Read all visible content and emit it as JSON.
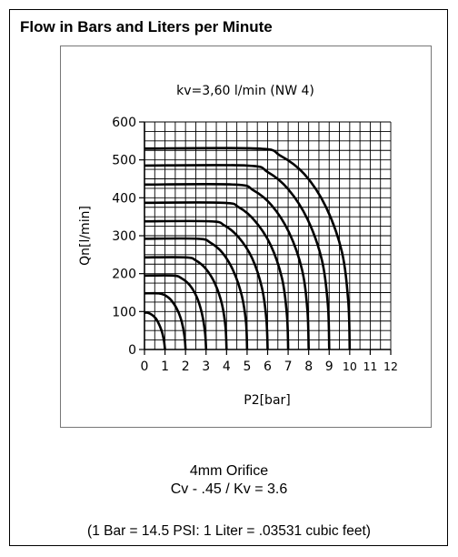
{
  "heading": "Flow in Bars and Liters per Minute",
  "caption": {
    "line1": "4mm Orifice",
    "line2": "Cv - .45 / Kv = 3.6",
    "note": "(1 Bar = 14.5 PSI: 1 Liter = .03531 cubic feet)"
  },
  "chart_data": {
    "type": "line",
    "title": "kv=3,60 l/min (NW 4)",
    "xlabel": "P2[bar]",
    "ylabel": "Qn[l/min]",
    "xlim": [
      0,
      12
    ],
    "ylim": [
      0,
      600
    ],
    "x_ticks": [
      "0",
      "1",
      "2",
      "3",
      "4",
      "5",
      "6",
      "7",
      "8",
      "9",
      "10",
      "11",
      "12"
    ],
    "y_ticks": [
      "0",
      "100",
      "200",
      "300",
      "400",
      "500",
      "600"
    ],
    "grid": true,
    "series": [
      {
        "p1": 1,
        "x": [
          0,
          0.15,
          0.35,
          0.55,
          0.72,
          0.86,
          0.95,
          1.0
        ],
        "y": [
          97,
          97,
          92,
          82,
          65,
          45,
          22,
          0
        ]
      },
      {
        "p1": 2,
        "x": [
          0,
          0.7,
          1.0,
          1.3,
          1.6,
          1.82,
          1.95,
          2.0
        ],
        "y": [
          148,
          148,
          143,
          130,
          105,
          72,
          35,
          0
        ]
      },
      {
        "p1": 3,
        "x": [
          0,
          1.4,
          1.8,
          2.2,
          2.55,
          2.8,
          2.95,
          3.0
        ],
        "y": [
          195,
          195,
          188,
          170,
          138,
          95,
          45,
          0
        ]
      },
      {
        "p1": 4,
        "x": [
          0,
          2.0,
          2.5,
          3.0,
          3.45,
          3.78,
          3.95,
          4.0
        ],
        "y": [
          243,
          243,
          235,
          212,
          172,
          118,
          58,
          0
        ]
      },
      {
        "p1": 5,
        "x": [
          0,
          2.6,
          3.2,
          3.8,
          4.35,
          4.75,
          4.95,
          5.0
        ],
        "y": [
          292,
          292,
          282,
          255,
          205,
          140,
          70,
          0
        ]
      },
      {
        "p1": 6,
        "x": [
          0,
          3.2,
          3.9,
          4.6,
          5.25,
          5.72,
          5.94,
          6.0
        ],
        "y": [
          338,
          338,
          327,
          295,
          240,
          163,
          80,
          0
        ]
      },
      {
        "p1": 7,
        "x": [
          0,
          3.8,
          4.6,
          5.4,
          6.15,
          6.7,
          6.94,
          7.0
        ],
        "y": [
          387,
          387,
          375,
          338,
          275,
          188,
          92,
          0
        ]
      },
      {
        "p1": 8,
        "x": [
          0,
          4.4,
          5.3,
          6.2,
          7.05,
          7.68,
          7.94,
          8.0
        ],
        "y": [
          435,
          435,
          420,
          380,
          308,
          210,
          103,
          0
        ]
      },
      {
        "p1": 9,
        "x": [
          0,
          5.0,
          6.0,
          7.0,
          7.95,
          8.65,
          8.94,
          9.0
        ],
        "y": [
          485,
          485,
          468,
          423,
          343,
          235,
          115,
          0
        ]
      },
      {
        "p1": 10,
        "x": [
          0,
          5.5,
          6.6,
          7.8,
          8.85,
          9.62,
          9.93,
          10.0
        ],
        "y": [
          530,
          530,
          512,
          462,
          375,
          257,
          125,
          0
        ]
      }
    ]
  }
}
